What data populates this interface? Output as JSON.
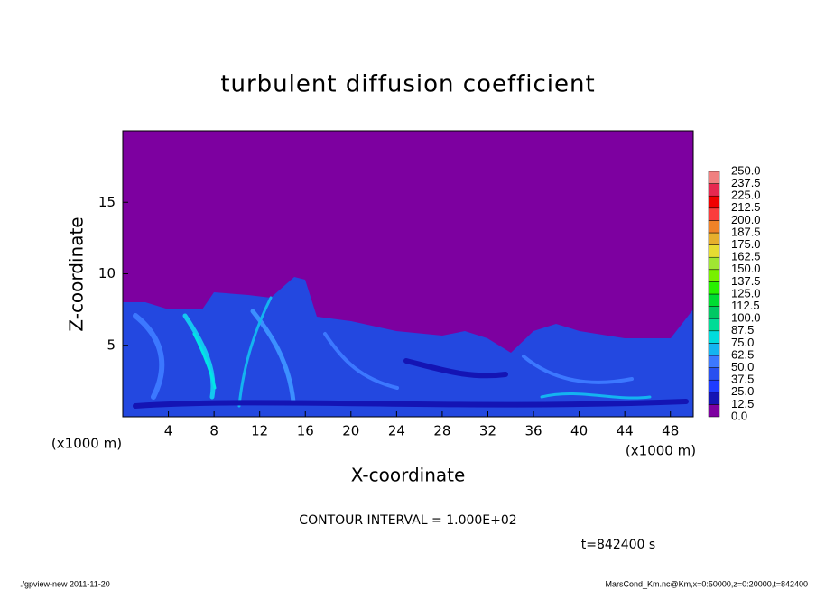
{
  "chart_data": {
    "type": "contour",
    "title": "turbulent diffusion coefficient",
    "x_label": "X-coordinate",
    "y_label": "Z-coordinate",
    "x_unit": "(x1000 m)",
    "y_unit": "(x1000 m)",
    "xlim": [
      0,
      50
    ],
    "xticks": [
      4,
      8,
      12,
      16,
      20,
      24,
      28,
      32,
      36,
      40,
      44,
      48
    ],
    "ylim": [
      0,
      20
    ],
    "yticks": [
      5,
      10,
      15
    ],
    "colorbar": {
      "levels": [
        {
          "value": 0,
          "label": "0.0"
        },
        {
          "value": 12.5,
          "label": "12.5"
        },
        {
          "value": 25,
          "label": "25.0"
        },
        {
          "value": 37.5,
          "label": "37.5"
        },
        {
          "value": 50,
          "label": "50.0"
        },
        {
          "value": 62.5,
          "label": "62.5"
        },
        {
          "value": 75,
          "label": "75.0"
        },
        {
          "value": 87.5,
          "label": "87.5"
        },
        {
          "value": 100,
          "label": "100.0"
        },
        {
          "value": 112.5,
          "label": "112.5"
        },
        {
          "value": 125,
          "label": "125.0"
        },
        {
          "value": 137.5,
          "label": "137.5"
        },
        {
          "value": 150,
          "label": "150.0"
        },
        {
          "value": 162.5,
          "label": "162.5"
        },
        {
          "value": 175,
          "label": "175.0"
        },
        {
          "value": 187.5,
          "label": "187.5"
        },
        {
          "value": 200,
          "label": "200.0"
        },
        {
          "value": 212.5,
          "label": "212.5"
        },
        {
          "value": 225,
          "label": "225.0"
        },
        {
          "value": 237.5,
          "label": "237.5"
        },
        {
          "value": 250,
          "label": "250.0"
        }
      ],
      "colors": [
        "#7d00a0",
        "#1414b4",
        "#1e3cff",
        "#2850f0",
        "#3c78ff",
        "#14b4f0",
        "#00dcdc",
        "#00dc96",
        "#00c864",
        "#00dc32",
        "#28f000",
        "#78f000",
        "#a0e632",
        "#e6dc32",
        "#e6af2d",
        "#f08228",
        "#fa3c3c",
        "#f00000",
        "#e62850",
        "#f08080"
      ]
    },
    "contour_interval": "CONTOUR INTERVAL = 1.000E+02",
    "time_label": "t=842400 s",
    "footer_left": "./gpview-new   2011-11-20",
    "footer_right": "MarsCond_Km.nc@Km,x=0:50000,z=0:20000,t=842400"
  }
}
